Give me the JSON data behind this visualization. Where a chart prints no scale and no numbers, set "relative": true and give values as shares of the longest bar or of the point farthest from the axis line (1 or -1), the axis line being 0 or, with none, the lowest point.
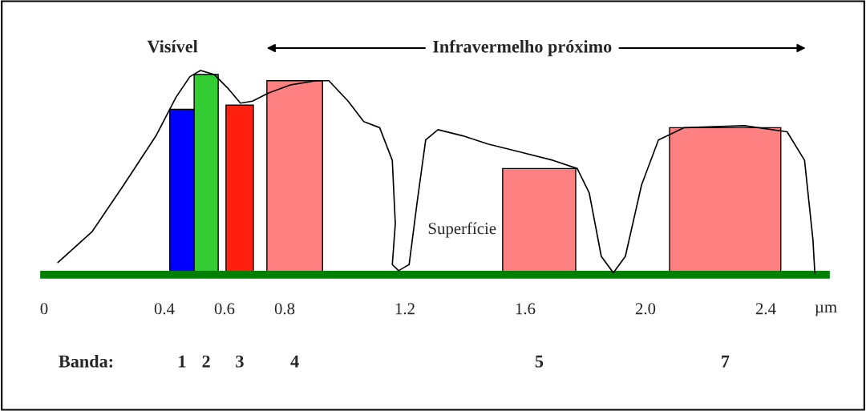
{
  "chart_data": {
    "type": "histogram",
    "relative": true,
    "xlabel": "µm",
    "xlim": [
      0,
      2.6
    ],
    "xticks": [
      0,
      0.4,
      0.6,
      0.8,
      1.2,
      1.6,
      {
        "value": 2.0,
        "label": "2.0"
      },
      2.4
    ],
    "series": [
      {
        "bins": [
          0.418,
          0.499,
          0.579,
          0.605,
          0.696,
          0.741,
          0.926,
          1.525,
          1.768,
          2.08,
          2.45
        ],
        "values": [
          0.81,
          0.98,
          null,
          0.83,
          null,
          0.95,
          null,
          0.52,
          null,
          0.72
        ],
        "colors": [
          "#0000ff",
          "#33cc33",
          null,
          "#ff2010",
          null,
          "#ff8080",
          null,
          "#ff8080",
          null,
          "#ff8080"
        ]
      },
      {
        "type": "line",
        "color": "#000000",
        "x": [
          0.046,
          0.159,
          0.265,
          0.372,
          0.439,
          0.485,
          0.52,
          0.566,
          0.613,
          0.653,
          0.693,
          0.747,
          0.821,
          0.905,
          0.947,
          1.011,
          1.063,
          1.116,
          1.158,
          1.168,
          1.158,
          1.179,
          1.214,
          1.241,
          1.269,
          1.31,
          1.393,
          1.476,
          1.586,
          1.693,
          1.773,
          1.813,
          1.853,
          1.893,
          1.933,
          1.987,
          2.043,
          2.129,
          2.329,
          2.471,
          2.529,
          2.557,
          2.563
        ],
        "values": [
          0.06,
          0.21,
          0.44,
          0.68,
          0.87,
          0.97,
          1,
          0.98,
          0.91,
          0.84,
          0.85,
          0.89,
          0.93,
          0.95,
          0.95,
          0.85,
          0.75,
          0.72,
          0.56,
          0.25,
          0.05,
          0.02,
          0.05,
          0.36,
          0.66,
          0.71,
          0.68,
          0.64,
          0.6,
          0.56,
          0.52,
          0.4,
          0.09,
          0.01,
          0.09,
          0.44,
          0.66,
          0.72,
          0.73,
          0.7,
          0.56,
          0.17,
          0.01
        ]
      }
    ],
    "annotations": [
      "Visível",
      "Infravermelho próximo",
      "Superfície",
      "Banda:",
      "1",
      "2",
      "3",
      "4",
      "5",
      "7"
    ],
    "legend": false,
    "grid": false
  }
}
